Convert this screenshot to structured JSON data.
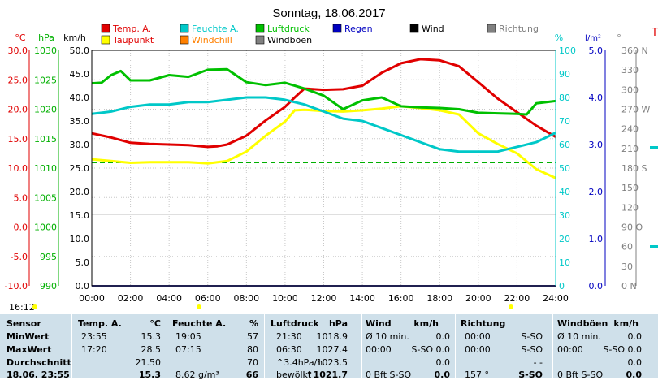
{
  "chart_data": {
    "type": "line",
    "title": "Sonntag, 18.06.2017",
    "x_ticks": [
      "00:00",
      "02:00",
      "04:00",
      "06:00",
      "08:00",
      "10:00",
      "12:00",
      "14:00",
      "16:00",
      "18:00",
      "20:00",
      "22:00",
      "24:00"
    ],
    "axes": {
      "temp_c": {
        "label": "°C",
        "ticks": [
          "30.0",
          "25.0",
          "20.0",
          "15.0",
          "10.0",
          "5.0",
          "0.0",
          "-5.0",
          "-10.0"
        ],
        "range": [
          -10,
          30
        ],
        "color": "#e00000"
      },
      "press_hpa": {
        "label": "hPa",
        "ticks": [
          "1030",
          "1025",
          "1020",
          "1015",
          "1010",
          "1005",
          "1000",
          "995",
          "990"
        ],
        "range": [
          990,
          1030
        ],
        "color": "#00b000"
      },
      "wind_kmh": {
        "label": "km/h",
        "ticks": [
          "50.0",
          "45.0",
          "40.0",
          "35.0",
          "30.0",
          "25.0",
          "20.0",
          "15.0",
          "10.0",
          "5.0",
          "0.0"
        ],
        "range": [
          0,
          50
        ],
        "color": "#000000"
      },
      "hum_pct": {
        "label": "%",
        "ticks": [
          "100",
          "90",
          "80",
          "70",
          "60",
          "50",
          "40",
          "30",
          "20",
          "10",
          "0"
        ],
        "range": [
          0,
          100
        ],
        "color": "#00c8c8"
      },
      "rain_lm2": {
        "label": "l/m²",
        "ticks": [
          "5.0",
          "4.0",
          "3.0",
          "2.0",
          "1.0",
          "0.0"
        ],
        "range": [
          0,
          5
        ],
        "color": "#0000c0"
      },
      "dir_deg": {
        "label": "°",
        "ticks": [
          "360 N",
          "330",
          "300",
          "270 W",
          "240",
          "210",
          "180 S",
          "150",
          "120",
          "90 O",
          "60",
          "30",
          "0 N"
        ],
        "range": [
          0,
          360
        ],
        "color": "#808080"
      }
    },
    "legend": [
      {
        "name": "Temp. A.",
        "color": "#e00000"
      },
      {
        "name": "Feuchte A.",
        "color": "#00c8c8"
      },
      {
        "name": "Luftdruck",
        "color": "#00c000"
      },
      {
        "name": "Regen",
        "color": "#0000c0"
      },
      {
        "name": "Wind",
        "color": "#000000"
      },
      {
        "name": "Richtung",
        "color": "#808080"
      },
      {
        "name": "Taupunkt",
        "color": "#ffff00"
      },
      {
        "name": "Windchill",
        "color": "#ff8000"
      },
      {
        "name": "Windböen",
        "color": "#808080"
      }
    ],
    "series": [
      {
        "name": "Temp. A.",
        "axis": "temp_c",
        "color": "#e00000",
        "x": [
          0,
          1,
          2,
          3,
          4,
          5,
          6,
          6.5,
          7,
          8,
          9,
          10,
          10.5,
          11,
          12,
          13,
          14,
          15,
          16,
          17,
          18,
          19,
          20,
          21,
          22,
          23,
          24
        ],
        "values": [
          15.9,
          15.2,
          14.3,
          14.1,
          14.0,
          13.9,
          13.6,
          13.7,
          14.0,
          15.5,
          18.1,
          20.4,
          22.0,
          23.5,
          23.3,
          23.4,
          24.0,
          26.2,
          27.8,
          28.5,
          28.3,
          27.3,
          24.6,
          21.8,
          19.5,
          17.2,
          15.3
        ]
      },
      {
        "name": "Taupunkt",
        "axis": "temp_c",
        "color": "#ffff00",
        "x": [
          0,
          1,
          2,
          3,
          4,
          5,
          6,
          7,
          8,
          9,
          10,
          10.5,
          11,
          12,
          13,
          14,
          15,
          16,
          17,
          18,
          19,
          20,
          21,
          22,
          23,
          24
        ],
        "values": [
          11.5,
          11.2,
          10.9,
          11.0,
          11.0,
          11.0,
          10.8,
          11.2,
          12.8,
          15.5,
          17.9,
          19.8,
          19.9,
          19.7,
          19.6,
          19.8,
          20.1,
          20.5,
          20.2,
          19.8,
          19.1,
          15.9,
          14.1,
          12.5,
          9.8,
          8.3
        ]
      },
      {
        "name": "Feuchte A.",
        "axis": "hum_pct",
        "color": "#00c8c8",
        "x": [
          0,
          1,
          2,
          3,
          4,
          5,
          6,
          7,
          8,
          9,
          10,
          11,
          12,
          13,
          14,
          15,
          16,
          17,
          18,
          19,
          20,
          21,
          22,
          23,
          24
        ],
        "values": [
          73,
          74,
          76,
          77,
          77,
          78,
          78,
          79,
          80,
          80,
          79,
          77,
          74,
          71,
          70,
          67,
          64,
          61,
          58,
          57,
          57,
          57,
          59,
          61,
          65
        ]
      },
      {
        "name": "Luftdruck",
        "axis": "press_hpa",
        "color": "#00c000",
        "x": [
          0,
          0.5,
          1,
          1.5,
          2,
          3,
          4,
          5,
          6,
          7,
          8,
          9,
          10,
          11,
          12,
          13,
          14,
          15,
          16,
          17,
          18,
          19,
          20,
          21,
          22,
          22.5,
          23,
          24
        ],
        "values": [
          1024.4,
          1024.5,
          1025.8,
          1026.5,
          1024.9,
          1024.9,
          1025.8,
          1025.5,
          1026.7,
          1026.8,
          1024.6,
          1024.1,
          1024.5,
          1023.5,
          1022.3,
          1020.0,
          1021.5,
          1022.0,
          1020.5,
          1020.3,
          1020.2,
          1020.0,
          1019.4,
          1019.3,
          1019.2,
          1019.1,
          1021.0,
          1021.4
        ]
      },
      {
        "name": "Wind",
        "axis": "wind_kmh",
        "color": "#000000",
        "x": [
          0,
          24
        ],
        "values": [
          0,
          0
        ]
      },
      {
        "name": "Regen",
        "axis": "rain_lm2",
        "color": "#0000c0",
        "x": [
          0,
          24
        ],
        "values": [
          0,
          0
        ]
      }
    ],
    "reference_line": {
      "axis": "temp_c",
      "value": 10.9,
      "color": "#00b000"
    }
  },
  "marker_time": "16:12",
  "side_label": "T",
  "table": {
    "headers": [
      "Sensor",
      "Temp. A.",
      "°C",
      "Feuchte A.",
      "%",
      "Luftdruck",
      "hPa",
      "Wind",
      "km/h",
      "Richtung",
      "Windböen",
      "km/h"
    ],
    "rows": [
      {
        "label": "MinWert",
        "c": [
          "23:55",
          "15.3",
          "19:05",
          "57",
          "21:30",
          "1018.9",
          "Ø 10 min.",
          "0.0",
          "00:00",
          "S-SO",
          "Ø 10 min.",
          "0.0"
        ]
      },
      {
        "label": "MaxWert",
        "c": [
          "17:20",
          "28.5",
          "07:15",
          "80",
          "06:30",
          "1027.4",
          "00:00",
          "S-SO 0.0",
          "00:00",
          "S-SO",
          "00:00",
          "S-SO 0.0"
        ]
      },
      {
        "label": "Durchschnitt",
        "c": [
          "",
          "21.50",
          "",
          "70",
          "^3.4hPa/h",
          "1023.5",
          "",
          "0.0",
          "",
          "- -",
          "",
          "0.0"
        ]
      },
      {
        "label": "18.06. 23:55",
        "c": [
          "",
          "15.3",
          "8.62 g/m³",
          "66",
          "bewölkt",
          "↑1021.7",
          "0 Bft S-SO",
          "0.0",
          "157 °",
          "S-SO",
          "0 Bft S-SO",
          "0.0"
        ]
      }
    ]
  }
}
